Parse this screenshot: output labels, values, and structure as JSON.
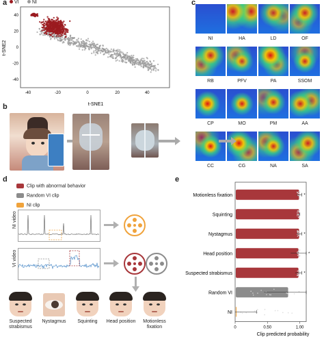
{
  "panel_letters": {
    "a": "a",
    "b": "b",
    "c": "c",
    "d": "d",
    "e": "e"
  },
  "panel_a": {
    "legend_vi": "VI",
    "legend_ni": "NI",
    "colors": {
      "vi": "#9b1b20",
      "ni": "#9a9a9a"
    },
    "chart_data": {
      "type": "scatter",
      "xlabel": "t-SNE1",
      "ylabel": "t-SNE2",
      "xlim": [
        -45,
        55
      ],
      "ylim": [
        -50,
        50
      ],
      "xticks": [
        "-40",
        "-20",
        "0",
        "20",
        "40"
      ],
      "yticks": [
        "40",
        "20",
        "0",
        "-20",
        "-40"
      ],
      "series": [
        {
          "name": "VI",
          "color": "#9b1b20"
        },
        {
          "name": "NI",
          "color": "#9a9a9a"
        }
      ]
    }
  },
  "panel_c": {
    "heatmaps": [
      {
        "label": "NI"
      },
      {
        "label": "HA"
      },
      {
        "label": "LD"
      },
      {
        "label": "OF"
      },
      {
        "label": "RB"
      },
      {
        "label": "PFV"
      },
      {
        "label": "PA"
      },
      {
        "label": "SSOM"
      },
      {
        "label": "CP"
      },
      {
        "label": "MO"
      },
      {
        "label": "PM"
      },
      {
        "label": "AA"
      },
      {
        "label": "CC"
      },
      {
        "label": "CG"
      },
      {
        "label": "NA"
      },
      {
        "label": "SA"
      }
    ]
  },
  "panel_d": {
    "legend": [
      {
        "label": "Clip with abnormal behavior",
        "color": "#a8373b"
      },
      {
        "label": "Random VI clip",
        "color": "#8c8c8c"
      },
      {
        "label": "NI clip",
        "color": "#f0a33c"
      }
    ],
    "ni_video_label": "NI video",
    "vi_video_label": "VI video",
    "behaviors": [
      {
        "label": "Suspected strabismus"
      },
      {
        "label": "Nystagmus"
      },
      {
        "label": "Squinting"
      },
      {
        "label": "Head position"
      },
      {
        "label": "Motionless fixation"
      }
    ]
  },
  "panel_e": {
    "chart_data": {
      "type": "bar",
      "categories": [
        "Motionless fixation",
        "Squinting",
        "Nystagmus",
        "Head position",
        "Suspected strabismus",
        "Random VI",
        "NI"
      ],
      "values": [
        0.99,
        0.99,
        0.99,
        0.98,
        0.98,
        0.82,
        0.02
      ],
      "colors": [
        "#a8373b",
        "#a8373b",
        "#a8373b",
        "#a8373b",
        "#a8373b",
        "#8c8c8c",
        "#f0a33c"
      ],
      "errors": [
        0.04,
        0.01,
        0.04,
        0.12,
        0.05,
        0.37,
        0.31
      ],
      "significance": [
        "*",
        "",
        "*",
        "*",
        "*",
        "",
        ""
      ],
      "xlabel": "Clip predicted probability",
      "xlim": [
        0,
        1.1
      ],
      "xticks": [
        "0",
        "0.50",
        "1.00"
      ]
    }
  }
}
